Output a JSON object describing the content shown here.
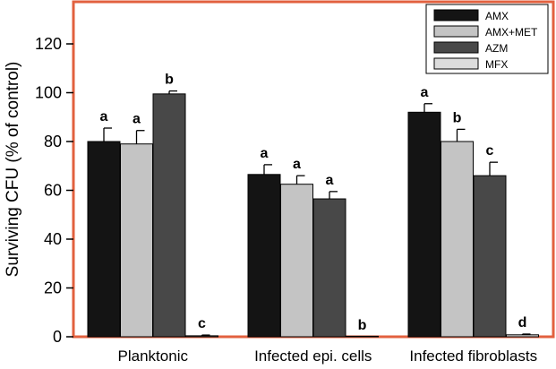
{
  "chart_data": {
    "type": "bar",
    "title": "",
    "xlabel": "",
    "ylabel": "Surviving CFU (% of control)",
    "ylim": [
      0,
      140
    ],
    "yticks": [
      0,
      20,
      40,
      60,
      80,
      100,
      120
    ],
    "categories": [
      "Planktonic",
      "Infected epi. cells",
      "Infected fibroblasts"
    ],
    "series": [
      {
        "name": "AMX",
        "color": "#141414",
        "values": [
          80,
          66.5,
          92
        ],
        "errors": [
          5.5,
          4,
          3.5
        ],
        "sig": [
          "a",
          "a",
          "a"
        ]
      },
      {
        "name": "AMX+MET",
        "color": "#c4c4c4",
        "values": [
          79,
          62.5,
          80
        ],
        "errors": [
          5.5,
          3.5,
          5
        ],
        "sig": [
          "a",
          "a",
          "b"
        ]
      },
      {
        "name": "AZM",
        "color": "#484848",
        "values": [
          99.5,
          56.5,
          66
        ],
        "errors": [
          1.2,
          3,
          5.5
        ],
        "sig": [
          "b",
          "a",
          "c"
        ]
      },
      {
        "name": "MFX",
        "color": "#dcdcdc",
        "values": [
          0.4,
          0,
          0.8
        ],
        "errors": [
          0.3,
          0,
          0.3
        ],
        "sig": [
          "c",
          "b",
          "d"
        ]
      }
    ],
    "legend_position": "top-right",
    "grid": false,
    "frame_color": "#e2613f"
  }
}
